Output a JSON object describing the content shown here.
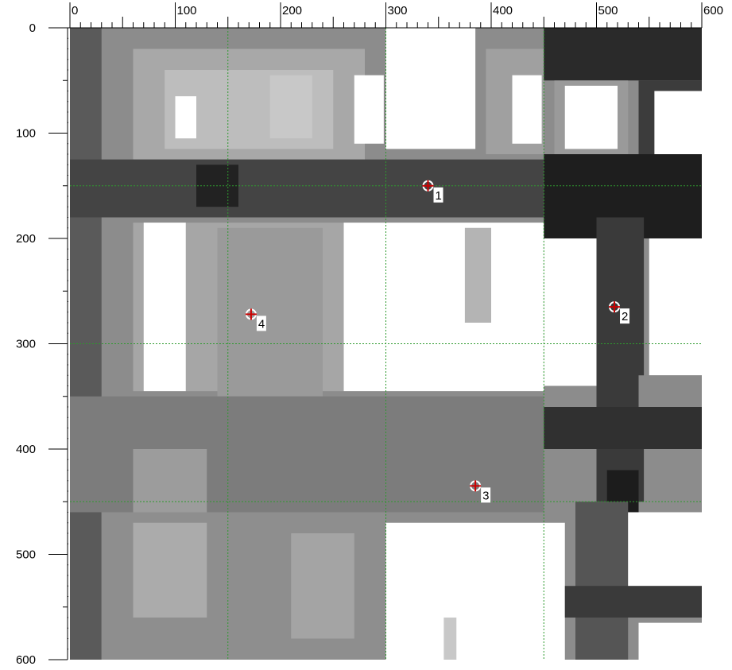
{
  "ruler": {
    "top_labels": [
      "0",
      "100",
      "200",
      "300",
      "400",
      "500",
      "600"
    ],
    "left_labels": [
      "0",
      "100",
      "200",
      "300",
      "400",
      "500",
      "600"
    ]
  },
  "markers": [
    {
      "label": "1"
    },
    {
      "label": "2"
    },
    {
      "label": "3"
    },
    {
      "label": "4"
    }
  ]
}
